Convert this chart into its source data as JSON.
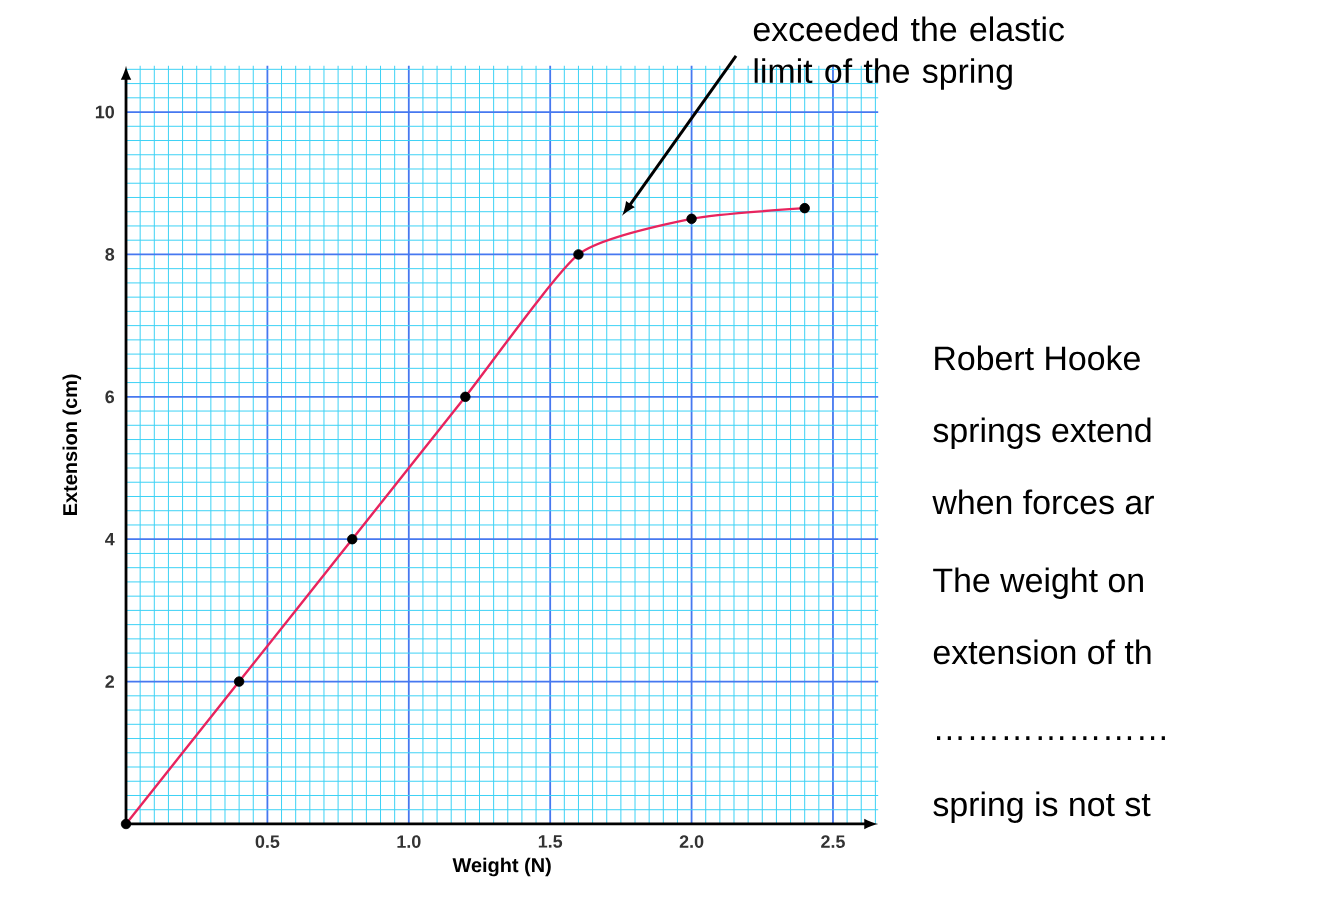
{
  "chart_data": {
    "type": "line",
    "xlabel": "Weight (N)",
    "ylabel": "Extension (cm)",
    "xlim": [
      0,
      2.66
    ],
    "ylim": [
      0,
      10.65
    ],
    "xticks": [
      0.5,
      {
        "value": 1,
        "label": "1.0"
      },
      1.5,
      {
        "value": 2,
        "label": "2.0"
      },
      2.5,
      {
        "value": 0.05,
        "label": null
      },
      {
        "value": 0.1,
        "label": null
      },
      {
        "value": 0.15,
        "label": null
      },
      {
        "value": 0.2,
        "label": null
      },
      {
        "value": 0.25,
        "label": null
      },
      {
        "value": 0.3,
        "label": null
      },
      {
        "value": 0.35,
        "label": null
      },
      {
        "value": 0.4,
        "label": null
      },
      {
        "value": 0.45,
        "label": null
      },
      {
        "value": 0.55,
        "label": null
      },
      {
        "value": 0.6,
        "label": null
      },
      {
        "value": 0.65,
        "label": null
      },
      {
        "value": 0.7,
        "label": null
      },
      {
        "value": 0.75,
        "label": null
      },
      {
        "value": 0.8,
        "label": null
      },
      {
        "value": 0.85,
        "label": null
      },
      {
        "value": 0.9,
        "label": null
      },
      {
        "value": 0.95,
        "label": null
      },
      {
        "value": 1.05,
        "label": null
      },
      {
        "value": 1.1,
        "label": null
      },
      {
        "value": 1.15,
        "label": null
      },
      {
        "value": 1.2,
        "label": null
      },
      {
        "value": 1.25,
        "label": null
      },
      {
        "value": 1.3,
        "label": null
      },
      {
        "value": 1.35,
        "label": null
      },
      {
        "value": 1.4,
        "label": null
      },
      {
        "value": 1.45,
        "label": null
      },
      {
        "value": 1.55,
        "label": null
      },
      {
        "value": 1.6,
        "label": null
      },
      {
        "value": 1.65,
        "label": null
      },
      {
        "value": 1.7,
        "label": null
      },
      {
        "value": 1.75,
        "label": null
      },
      {
        "value": 1.8,
        "label": null
      },
      {
        "value": 1.85,
        "label": null
      },
      {
        "value": 1.9,
        "label": null
      },
      {
        "value": 1.95,
        "label": null
      },
      {
        "value": 2.05,
        "label": null
      },
      {
        "value": 2.1,
        "label": null
      },
      {
        "value": 2.15,
        "label": null
      },
      {
        "value": 2.2,
        "label": null
      },
      {
        "value": 2.25,
        "label": null
      },
      {
        "value": 2.3,
        "label": null
      },
      {
        "value": 2.35,
        "label": null
      },
      {
        "value": 2.4,
        "label": null
      },
      {
        "value": 2.45,
        "label": null
      },
      {
        "value": 2.55,
        "label": null
      },
      {
        "value": 2.6,
        "label": null
      },
      {
        "value": 2.65,
        "label": null
      }
    ],
    "yticks": [
      2,
      4,
      6,
      8,
      10,
      {
        "value": 0.2,
        "label": null
      },
      {
        "value": 0.4,
        "label": null
      },
      {
        "value": 0.6,
        "label": null
      },
      {
        "value": 0.8,
        "label": null
      },
      {
        "value": 1,
        "label": null
      },
      {
        "value": 1.2,
        "label": null
      },
      {
        "value": 1.4,
        "label": null
      },
      {
        "value": 1.6,
        "label": null
      },
      {
        "value": 1.8,
        "label": null
      },
      {
        "value": 2.2,
        "label": null
      },
      {
        "value": 2.4,
        "label": null
      },
      {
        "value": 2.6,
        "label": null
      },
      {
        "value": 2.8,
        "label": null
      },
      {
        "value": 3,
        "label": null
      },
      {
        "value": 3.2,
        "label": null
      },
      {
        "value": 3.4,
        "label": null
      },
      {
        "value": 3.6,
        "label": null
      },
      {
        "value": 3.8,
        "label": null
      },
      {
        "value": 4.2,
        "label": null
      },
      {
        "value": 4.4,
        "label": null
      },
      {
        "value": 4.6,
        "label": null
      },
      {
        "value": 4.8,
        "label": null
      },
      {
        "value": 5,
        "label": null
      },
      {
        "value": 5.2,
        "label": null
      },
      {
        "value": 5.4,
        "label": null
      },
      {
        "value": 5.6,
        "label": null
      },
      {
        "value": 5.8,
        "label": null
      },
      {
        "value": 6.2,
        "label": null
      },
      {
        "value": 6.4,
        "label": null
      },
      {
        "value": 6.6,
        "label": null
      },
      {
        "value": 6.8,
        "label": null
      },
      {
        "value": 7,
        "label": null
      },
      {
        "value": 7.2,
        "label": null
      },
      {
        "value": 7.4,
        "label": null
      },
      {
        "value": 7.6,
        "label": null
      },
      {
        "value": 7.8,
        "label": null
      },
      {
        "value": 8.2,
        "label": null
      },
      {
        "value": 8.4,
        "label": null
      },
      {
        "value": 8.6,
        "label": null
      },
      {
        "value": 8.8,
        "label": null
      },
      {
        "value": 9,
        "label": null
      },
      {
        "value": 9.2,
        "label": null
      },
      {
        "value": 9.4,
        "label": null
      },
      {
        "value": 9.6,
        "label": null
      },
      {
        "value": 9.8,
        "label": null
      },
      {
        "value": 10.2,
        "label": null
      },
      {
        "value": 10.4,
        "label": null
      },
      {
        "value": 10.6,
        "label": null
      }
    ],
    "grid": true,
    "series": [
      {
        "color": "#e8245e",
        "marker": "none",
        "x": [
          0,
          0.4,
          0.8,
          1.2,
          1.6,
          2.0,
          2.4
        ],
        "values": [
          0,
          2,
          4,
          6,
          8,
          8.5,
          8.65
        ]
      },
      {
        "type": "scatter",
        "color": "#000000",
        "marker": "circle",
        "x": [
          0,
          0.4,
          0.8,
          1.2,
          1.6,
          2.0,
          2.4
        ],
        "values": [
          0,
          2,
          4,
          6,
          8,
          8.5,
          8.65
        ]
      }
    ],
    "annotations": [
      "exceeded the elastic limit of the spring",
      "Robert Hooke",
      "springs extend",
      "when forces ar",
      "The weight on",
      "extension of th",
      "…………………",
      "spring is not st"
    ]
  }
}
